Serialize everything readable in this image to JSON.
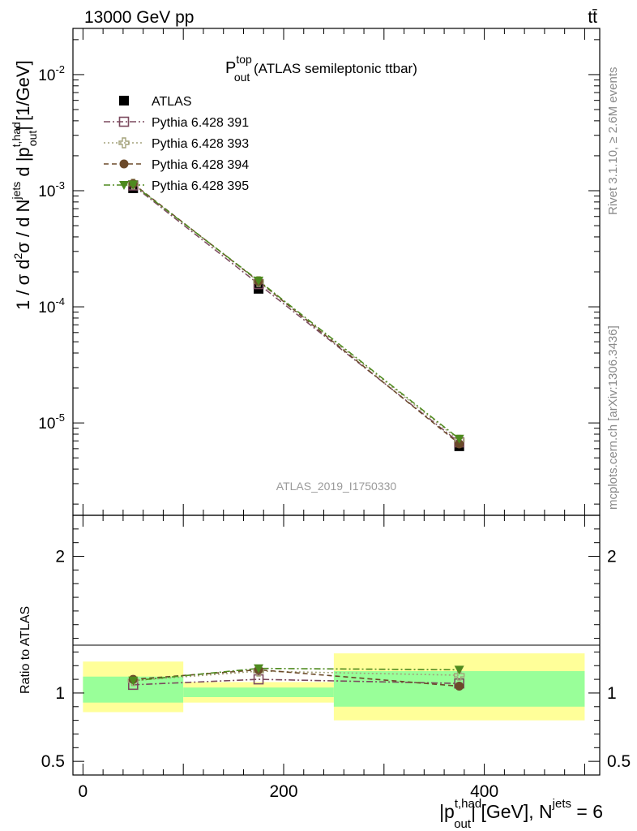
{
  "header": {
    "left": "13000 GeV pp",
    "right": "tt̄"
  },
  "plot_title": {
    "main": "P",
    "sup": "top",
    "sub": "out",
    "rest": " (ATLAS semileptonic ttbar)"
  },
  "watermark": "ATLAS_2019_I1750330",
  "side_text": {
    "rivet": "Rivet 3.1.10, ≥ 2.6M events",
    "mcplots": "mcplots.cern.ch [arXiv:1306.3436]"
  },
  "y_axis_top_label": "1 / σ d²σ / d N^jets d |p_out^t,had| [1/GeV]",
  "y_axis_bottom_label": "Ratio to ATLAS",
  "x_axis_label": "|p_out^t,had| [GeV], N^jets = 6",
  "colors": {
    "data": "#000000",
    "s391": "#7b4a5e",
    "s393": "#a4a27a",
    "s394": "#6b4a2a",
    "s395": "#4e8a1e",
    "band_inner": "#99ff99",
    "band_outer": "#ffff99"
  },
  "chart_data": [
    {
      "type": "scatter",
      "panel": "main",
      "yscale": "log",
      "xlim": [
        -10,
        515
      ],
      "ylim": [
        1.6e-06,
        0.025
      ],
      "x_ticks": [
        0,
        200,
        400
      ],
      "y_tick_labels": [
        "10^-2",
        "10^-3",
        "10^-4",
        "10^-5"
      ],
      "bins": [
        [
          0,
          100
        ],
        [
          100,
          250
        ],
        [
          250,
          500
        ]
      ],
      "x": [
        50,
        175,
        375
      ],
      "series": [
        {
          "name": "ATLAS",
          "marker": "square-filled",
          "values": [
            0.00105,
            0.000143,
            6.3e-06
          ]
        },
        {
          "name": "Pythia 6.428 391",
          "marker": "square-open",
          "line": "dash-dot",
          "values": [
            0.00111,
            0.000157,
            6.8e-06
          ]
        },
        {
          "name": "Pythia 6.428 393",
          "marker": "cross-open",
          "line": "dot",
          "values": [
            0.00114,
            0.000165,
            7.1e-06
          ]
        },
        {
          "name": "Pythia 6.428 394",
          "marker": "circle-filled",
          "line": "dash",
          "values": [
            0.00115,
            0.000166,
            6.6e-06
          ]
        },
        {
          "name": "Pythia 6.428 395",
          "marker": "triangle-down-filled",
          "line": "dash-dot",
          "values": [
            0.00113,
            0.000168,
            7.3e-06
          ]
        }
      ]
    },
    {
      "type": "scatter",
      "panel": "ratio",
      "ylabel": "Ratio to ATLAS",
      "xlim": [
        -10,
        515
      ],
      "ylim": [
        0.4,
        2.3
      ],
      "y_ticks": [
        0.5,
        1,
        2
      ],
      "bands": [
        {
          "x": [
            0,
            100
          ],
          "inner": [
            0.93,
            1.12
          ],
          "outer": [
            0.86,
            1.23
          ]
        },
        {
          "x": [
            100,
            250
          ],
          "inner": [
            0.97,
            1.04
          ],
          "outer": [
            0.93,
            1.08
          ]
        },
        {
          "x": [
            250,
            500
          ],
          "inner": [
            0.9,
            1.16
          ],
          "outer": [
            0.8,
            1.29
          ]
        }
      ],
      "x": [
        50,
        175,
        375
      ],
      "series": [
        {
          "name": "Pythia 6.428 391",
          "values": [
            1.06,
            1.1,
            1.07
          ]
        },
        {
          "name": "Pythia 6.428 393",
          "values": [
            1.09,
            1.16,
            1.13
          ]
        },
        {
          "name": "Pythia 6.428 394",
          "values": [
            1.1,
            1.17,
            1.05
          ]
        },
        {
          "name": "Pythia 6.428 395",
          "values": [
            1.09,
            1.18,
            1.17
          ]
        }
      ]
    }
  ]
}
